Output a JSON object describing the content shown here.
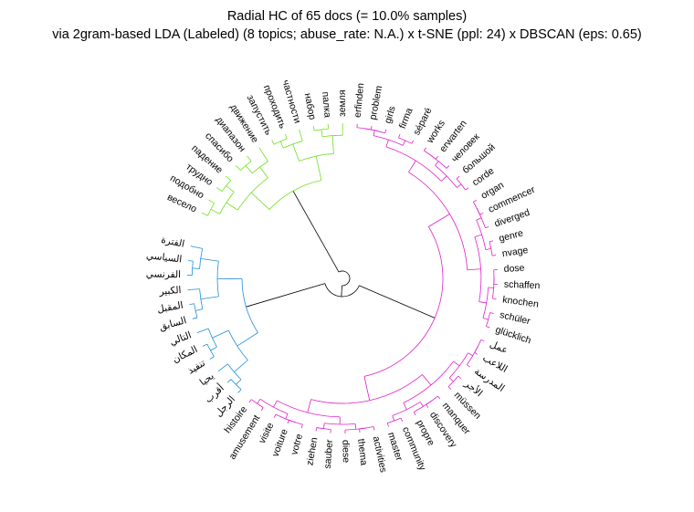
{
  "chart_data": {
    "type": "dendrogram",
    "layout": "radial",
    "title": "Radial HC of 65 docs (= 10.0% samples)",
    "subtitle": "via 2gram-based LDA (Labeled) (8 topics; abuse_rate: N.A.) x t-SNE (ppl: 24) x DBSCAN (eps: 0.65)",
    "colors": {
      "blue": "#1f8fd6",
      "green": "#6fe020",
      "pink": "#e020c8",
      "link": "#000000"
    },
    "clusters": [
      {
        "color": "green",
        "leaves": [
          "весело",
          "подобно",
          "трудно",
          "падение",
          "спасибо",
          "диапазон",
          "движение",
          "запустить",
          "проходить",
          "частности",
          "набор",
          "палка",
          "земля"
        ]
      },
      {
        "color": "pink",
        "leaves": [
          "erfinden",
          "problem",
          "girls",
          "firma",
          "séparé",
          "works",
          "erwarten",
          "человек",
          "большой",
          "corde",
          "organ",
          "commencer",
          "diverged",
          "genre",
          "nvage",
          "dose",
          "schaffen",
          "knochen",
          "schüler",
          "glücklich",
          "عمل",
          "اللاعب",
          "المدرسة",
          "الأجر",
          "müssen",
          "manquer",
          "discovery",
          "propre",
          "community",
          "master",
          "activities",
          "thema",
          "diese",
          "sauber",
          "ziehen",
          "votre",
          "voiture",
          "visite",
          "amusement",
          "histoire"
        ]
      },
      {
        "color": "blue",
        "leaves": [
          "الرجل",
          "أقرب",
          "يحيا",
          "تنفيذ",
          "المكان",
          "التالي",
          "السابق",
          "المقبل",
          "الكبير",
          "الفرنسي",
          "السياسي",
          "الفترة"
        ]
      }
    ]
  }
}
